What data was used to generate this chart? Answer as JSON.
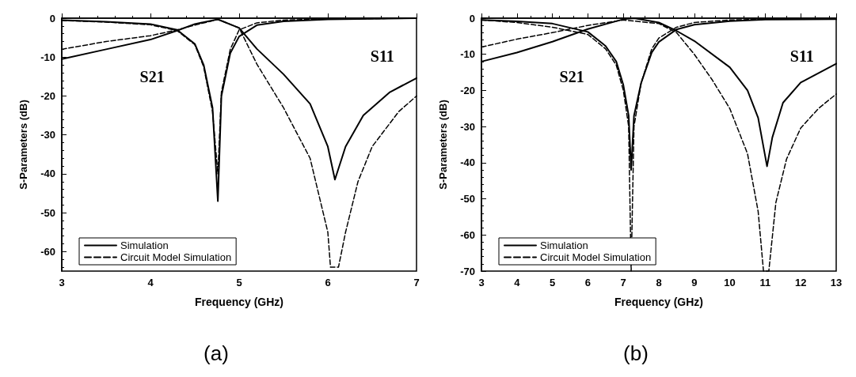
{
  "chart_data": [
    {
      "type": "line",
      "title": "(a)",
      "xlabel": "Frequency (GHz)",
      "ylabel": "S-Parameters (dB)",
      "xlim": [
        3,
        7
      ],
      "xticks": [
        3,
        4,
        5,
        6,
        7
      ],
      "ylim": [
        -65,
        0
      ],
      "yticks": [
        -60,
        -50,
        -40,
        -30,
        -20,
        -10,
        0
      ],
      "legend": "bottom left",
      "marker": "none",
      "annotations": [
        "S21",
        "S11"
      ],
      "series": [
        {
          "name": "Simulation",
          "color": "#000000",
          "line_style": "solid",
          "x": [
            3,
            3.5,
            4,
            4.3,
            4.5,
            4.6,
            4.7,
            4.76,
            4.8,
            4.9,
            5,
            5.2,
            5.5,
            6,
            7
          ],
          "values": [
            -0.5,
            -0.9,
            -1.5,
            -3,
            -6.6,
            -12,
            -23,
            -47,
            -20,
            -9,
            -4.7,
            -1.8,
            -0.8,
            -0.3,
            0
          ]
        },
        {
          "name": "Circuit Model Simulation",
          "color": "#000000",
          "line_style": "dashed",
          "x": [
            3,
            3.5,
            4,
            4.3,
            4.5,
            4.6,
            4.7,
            4.76,
            4.8,
            4.9,
            5,
            5.2,
            5.5,
            6,
            7
          ],
          "values": [
            -0.6,
            -1,
            -1.7,
            -3.2,
            -6.8,
            -12.5,
            -24,
            -40,
            -19,
            -8,
            -3,
            -1.2,
            -0.5,
            -0.2,
            0
          ]
        },
        {
          "color": "#000000",
          "line_style": "solid",
          "x": [
            3,
            3.5,
            4,
            4.3,
            4.5,
            4.76,
            5,
            5.2,
            5.5,
            5.8,
            6,
            6.08,
            6.2,
            6.4,
            6.7,
            7
          ],
          "values": [
            -10.5,
            -8,
            -5.5,
            -3.2,
            -1.5,
            -0.3,
            -2.5,
            -7.9,
            -14.4,
            -22,
            -33,
            -41.5,
            -33,
            -25,
            -19,
            -15.4
          ]
        },
        {
          "color": "#000000",
          "line_style": "dashed",
          "x": [
            3,
            3.5,
            4,
            4.3,
            4.5,
            4.76,
            5,
            5.2,
            5.5,
            5.8,
            6,
            6.03,
            6.12,
            6.2,
            6.34,
            6.5,
            6.8,
            7
          ],
          "values": [
            -8,
            -6,
            -4.5,
            -3,
            -1.8,
            -0.3,
            -2.5,
            -11.8,
            -23,
            -36,
            -55,
            -64,
            -64,
            -55,
            -42,
            -33,
            -24,
            -20
          ]
        }
      ]
    },
    {
      "type": "line",
      "title": "(b)",
      "xlabel": "Frequency (GHz)",
      "ylabel": "S-Parameters (dB)",
      "xlim": [
        3,
        13
      ],
      "xticks": [
        3,
        4,
        5,
        6,
        7,
        8,
        9,
        10,
        11,
        12,
        13
      ],
      "ylim": [
        -70,
        0
      ],
      "yticks": [
        -70,
        -60,
        -50,
        -40,
        -30,
        -20,
        -10,
        0
      ],
      "legend": "bottom left",
      "marker": "none",
      "annotations": [
        "S21",
        "S11"
      ],
      "series": [
        {
          "name": "Simulation",
          "color": "#000000",
          "line_style": "solid",
          "x": [
            3,
            4,
            5,
            6,
            6.5,
            6.8,
            7,
            7.15,
            7.22,
            7.3,
            7.5,
            7.8,
            8,
            8.5,
            9,
            10,
            11,
            13
          ],
          "values": [
            -0.5,
            -0.9,
            -1.5,
            -3.8,
            -7.7,
            -12,
            -18.5,
            -27,
            -42,
            -27,
            -18,
            -9.5,
            -6.6,
            -3.1,
            -1.8,
            -0.8,
            -0.4,
            -0.3
          ]
        },
        {
          "name": "Circuit Model Simulation",
          "color": "#000000",
          "line_style": "dashed",
          "x": [
            3,
            4,
            5,
            6,
            6.5,
            6.8,
            7,
            7.15,
            7.22,
            7.3,
            7.5,
            7.8,
            8,
            8.5,
            9,
            10,
            11,
            13
          ],
          "values": [
            -0.5,
            -1.2,
            -2.5,
            -4.5,
            -8.5,
            -13,
            -20,
            -30,
            -70,
            -30,
            -18,
            -8.5,
            -5.5,
            -2.5,
            -1.2,
            -0.5,
            -0.3,
            -0.2
          ]
        },
        {
          "color": "#000000",
          "line_style": "solid",
          "x": [
            3,
            4,
            5,
            6,
            7,
            7.3,
            8,
            8.5,
            9,
            10,
            10.5,
            10.8,
            11.05,
            11.2,
            11.5,
            12,
            13
          ],
          "values": [
            -12,
            -9.5,
            -6.5,
            -3,
            -0.3,
            0,
            -1.2,
            -3.5,
            -6.3,
            -13.6,
            -20,
            -27.6,
            -41,
            -33,
            -23.4,
            -17.8,
            -12.6
          ]
        },
        {
          "color": "#000000",
          "line_style": "dashed",
          "x": [
            3,
            4,
            5,
            6,
            7,
            8,
            8.5,
            9,
            9.5,
            10,
            10.5,
            10.8,
            10.95,
            11.1,
            11.3,
            11.6,
            12,
            12.5,
            13
          ],
          "values": [
            -8,
            -5.8,
            -4,
            -2,
            -0.5,
            -1.5,
            -4,
            -10,
            -17,
            -25,
            -37.5,
            -53.5,
            -70,
            -70,
            -51,
            -39,
            -30.4,
            -25,
            -21
          ]
        }
      ]
    }
  ]
}
